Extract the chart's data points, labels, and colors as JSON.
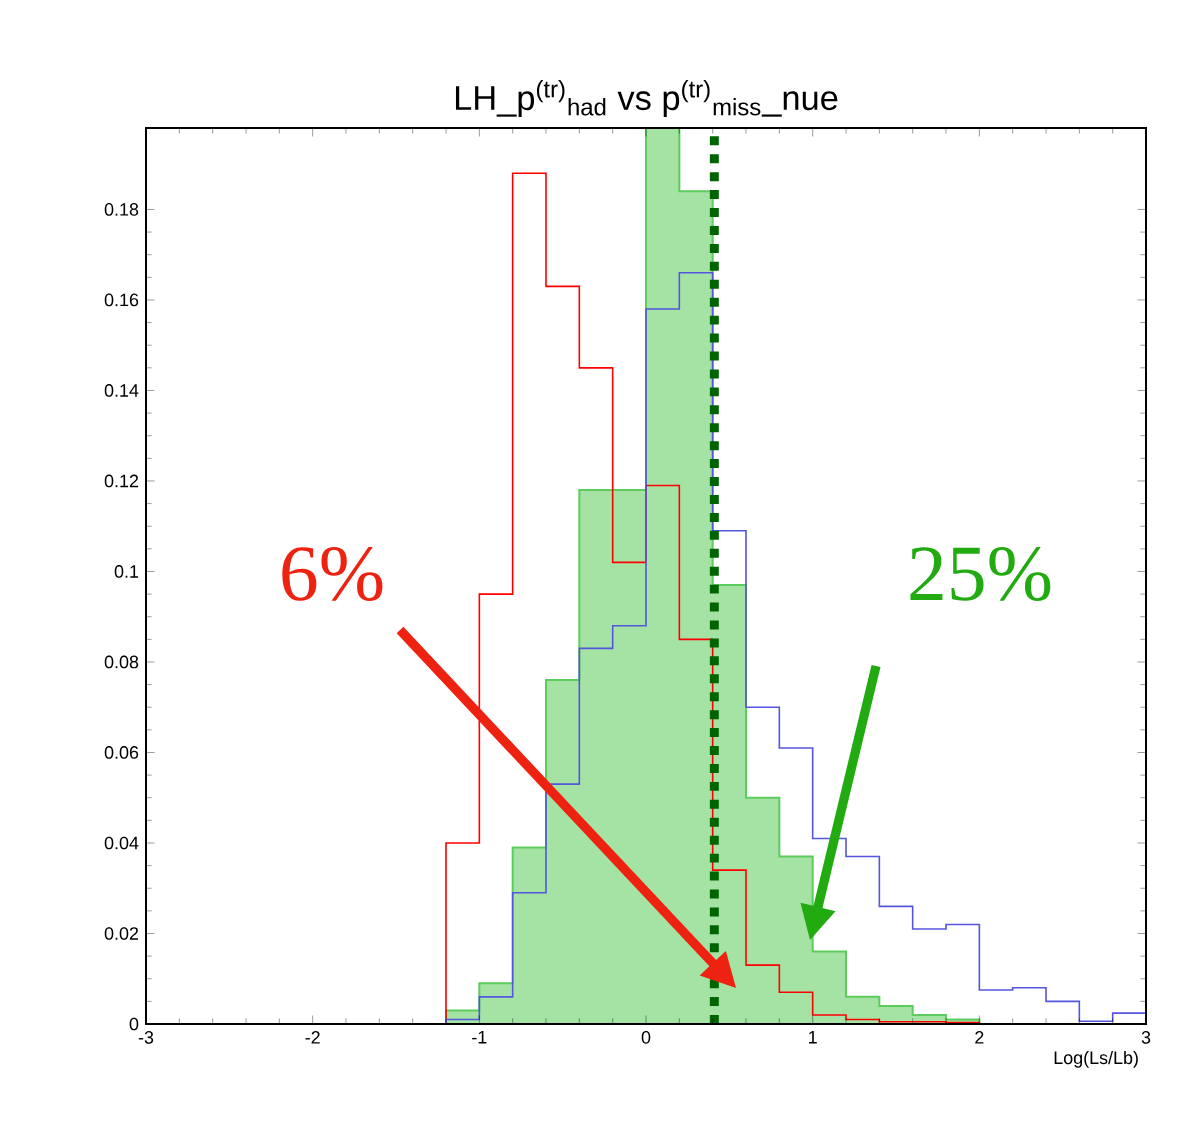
{
  "chart_data": {
    "type": "histogram",
    "title": "LH_p$^{(tr)}$$_{had}$ vs p$^{(tr)}$$_{miss}$_nue",
    "xlabel": "Log(Ls/Lb)",
    "bins": [
      -3,
      -2.8,
      -2.6,
      -2.4,
      -2.2,
      -2,
      -1.8,
      -1.6,
      -1.4,
      -1.2,
      -1,
      -0.8,
      -0.6,
      -0.4,
      -0.2,
      0,
      0.2,
      0.4,
      0.6,
      0.8,
      1,
      1.2,
      1.4,
      1.6,
      1.8,
      2,
      2.2,
      2.4,
      2.6,
      2.8,
      3
    ],
    "series": [
      {
        "color": "#5ccc5c",
        "values": [
          0,
          0,
          0,
          0,
          0,
          0,
          0,
          0,
          0,
          0.003,
          0.009,
          0.039,
          0.076,
          0.118,
          0.118,
          0.198,
          0.184,
          0.097,
          0.05,
          0.037,
          0.016,
          0.006,
          0.004,
          0.002,
          0.001,
          0,
          0,
          0,
          0,
          0
        ]
      },
      {
        "color": "#ff0000",
        "values": [
          0,
          0,
          0,
          0,
          0,
          0,
          0,
          0,
          0,
          0.04,
          0.095,
          0.188,
          0.163,
          0.145,
          0.102,
          0.119,
          0.085,
          0.034,
          0.013,
          0.007,
          0.002,
          0.001,
          0.0005,
          0.0005,
          0.0003,
          0,
          0,
          0,
          0,
          0
        ]
      },
      {
        "color": "#5555dd",
        "values": [
          0,
          0,
          0,
          0,
          0,
          0,
          0,
          0,
          0,
          0.001,
          0.006,
          0.029,
          0.053,
          0.083,
          0.088,
          0.158,
          0.166,
          0.109,
          0.07,
          0.061,
          0.041,
          0.037,
          0.026,
          0.021,
          0.022,
          0.0075,
          0.008,
          0.005,
          0.0006,
          0.0024
        ]
      }
    ],
    "xlim": [
      -3,
      3
    ],
    "ylim": [
      0,
      0.198
    ],
    "xticks": [
      -3,
      -2,
      -1,
      0,
      1,
      2,
      3
    ],
    "yticks": [
      0,
      0.02,
      0.04,
      0.06,
      0.08,
      0.1,
      0.12,
      0.14,
      0.16,
      0.18
    ],
    "ref_lines": [
      {
        "axis": "x",
        "value": 0.41,
        "color": "#006400",
        "line_style": "dotted"
      }
    ],
    "annotations": [
      "6%",
      "25%"
    ]
  }
}
